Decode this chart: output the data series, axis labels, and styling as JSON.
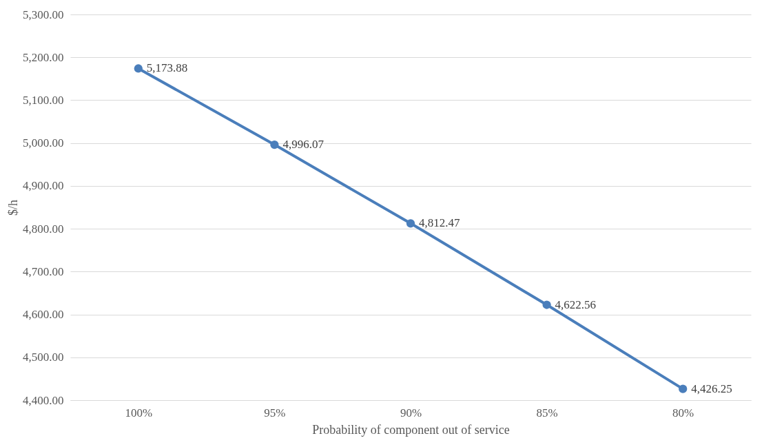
{
  "chart_data": {
    "type": "line",
    "xlabel": "Probability of component out of service",
    "ylabel": "$/h",
    "categories": [
      "100%",
      "95%",
      "90%",
      "85%",
      "80%"
    ],
    "series": [
      {
        "color": "#4a7ebb",
        "values": [
          5173.88,
          4996.07,
          4812.47,
          4622.56,
          4426.25
        ],
        "value_labels": [
          "5,173.88",
          "4,996.07",
          "4,812.47",
          "4,622.56",
          "4,426.25"
        ]
      }
    ],
    "ylim": [
      4400,
      5300
    ],
    "yticks": [
      {
        "value": 4400,
        "label": "4,400.00"
      },
      {
        "value": 4500,
        "label": "4,500.00"
      },
      {
        "value": 4600,
        "label": "4,600.00"
      },
      {
        "value": 4700,
        "label": "4,700.00"
      },
      {
        "value": 4800,
        "label": "4,800.00"
      },
      {
        "value": 4900,
        "label": "4,900.00"
      },
      {
        "value": 5000,
        "label": "5,000.00"
      },
      {
        "value": 5100,
        "label": "5,100.00"
      },
      {
        "value": 5200,
        "label": "5,200.00"
      },
      {
        "value": 5300,
        "label": "5,300.00"
      }
    ],
    "grid": "y",
    "marker": "circle",
    "line_style": "solid"
  }
}
